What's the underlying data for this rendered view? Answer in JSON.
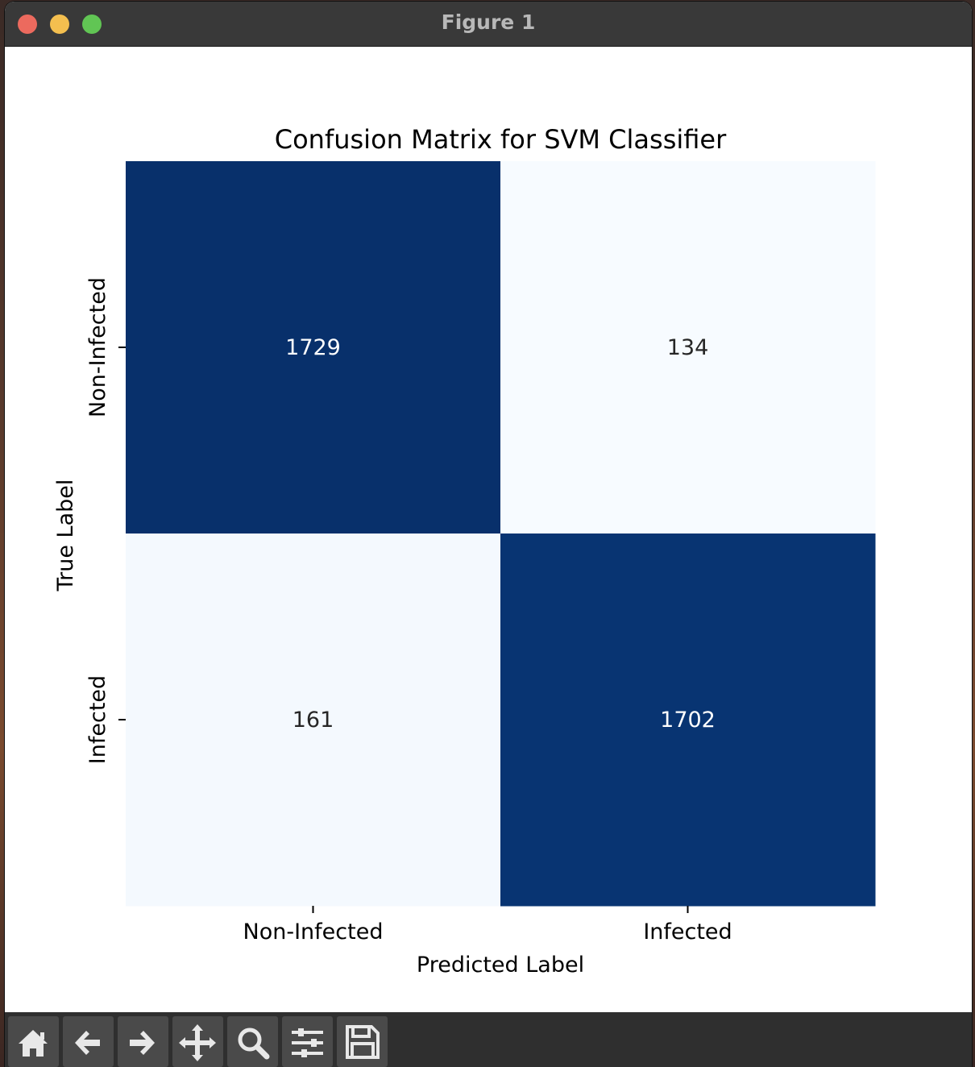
{
  "window": {
    "title": "Figure 1"
  },
  "toolbar": {
    "tools": [
      {
        "name": "home-icon"
      },
      {
        "name": "back-arrow-icon"
      },
      {
        "name": "forward-arrow-icon"
      },
      {
        "name": "pan-icon"
      },
      {
        "name": "zoom-icon"
      },
      {
        "name": "configure-subplots-icon"
      },
      {
        "name": "save-icon"
      }
    ]
  },
  "chart_data": {
    "type": "heatmap",
    "title": "Confusion Matrix for SVM Classifier",
    "xlabel": "Predicted Label",
    "ylabel": "True Label",
    "x_categories": [
      "Non-Infected",
      "Infected"
    ],
    "y_categories": [
      "Non-Infected",
      "Infected"
    ],
    "values": [
      [
        1729,
        134
      ],
      [
        161,
        1702
      ]
    ],
    "colormap": "Blues",
    "colors": {
      "high": "#08306b",
      "low": "#f7fbff"
    },
    "colorbar": false
  }
}
